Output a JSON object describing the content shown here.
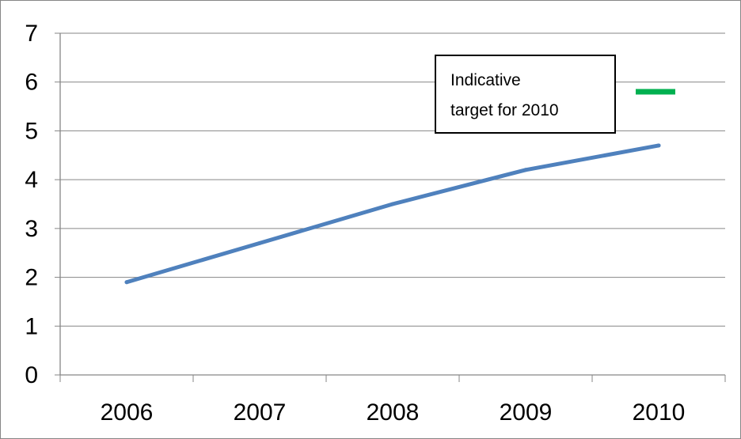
{
  "chart_data": {
    "type": "line",
    "categories": [
      "2006",
      "2007",
      "2008",
      "2009",
      "2010"
    ],
    "series": [
      {
        "values": [
          1.9,
          2.7,
          3.5,
          4.2,
          4.7
        ],
        "color": "#4f81bd"
      }
    ],
    "target": {
      "category": "2010",
      "value": 5.8,
      "color": "#00b050"
    },
    "annotation": {
      "lines": [
        "Indicative",
        "target for 2010"
      ]
    },
    "y_ticks": [
      "0",
      "1",
      "2",
      "3",
      "4",
      "5",
      "6",
      "7"
    ],
    "ylim": [
      0,
      7
    ],
    "grid": true,
    "legend": "none"
  }
}
